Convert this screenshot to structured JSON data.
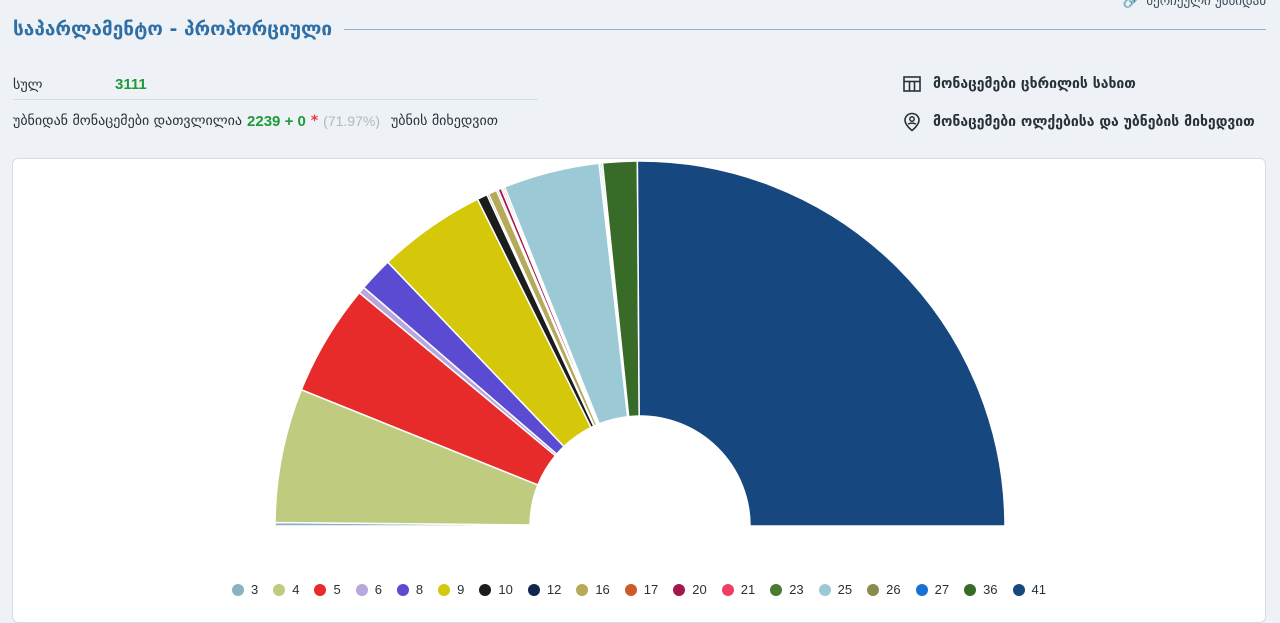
{
  "top_link": {
    "label": "შერჩეული უბნიდან",
    "icon": "link-icon"
  },
  "header": {
    "title": "საპარლამენტო - პროპორციული"
  },
  "stats": {
    "total_label": "სულ",
    "total_value": "3111",
    "counted_label": "უბნიდან მონაცემები დათვლილია",
    "counted_value": "2239 + 0",
    "star": "*",
    "percent": "(71.97%)",
    "by_precinct": "უბნის მიხედვით"
  },
  "links": {
    "table_view": {
      "label": "მონაცემები ცხრილის სახით",
      "icon": "table-icon"
    },
    "map_view": {
      "label": "მონაცემები ოლქებისა და უბნების მიხედვით",
      "icon": "location-pin-icon"
    }
  },
  "chart_data": {
    "type": "pie",
    "variant": "half-donut",
    "series": [
      {
        "name": "3",
        "color": "#8ab3c2",
        "value": 0.2
      },
      {
        "name": "4",
        "color": "#bfcb7f",
        "value": 7.8
      },
      {
        "name": "5",
        "color": "#e72a2a",
        "value": 6.5
      },
      {
        "name": "6",
        "color": "#b9a6dc",
        "value": 0.4
      },
      {
        "name": "8",
        "color": "#5b4bd2",
        "value": 2.0
      },
      {
        "name": "9",
        "color": "#d5c80a",
        "value": 6.3
      },
      {
        "name": "10",
        "color": "#1c1c1c",
        "value": 0.6
      },
      {
        "name": "12",
        "color": "#10264d",
        "value": 0.1
      },
      {
        "name": "16",
        "color": "#b5a95a",
        "value": 0.5
      },
      {
        "name": "17",
        "color": "#cd5a28",
        "value": 0.1
      },
      {
        "name": "20",
        "color": "#a4174d",
        "value": 0.2
      },
      {
        "name": "21",
        "color": "#ee3e62",
        "value": 0.1
      },
      {
        "name": "23",
        "color": "#4a7a32",
        "value": 0.1
      },
      {
        "name": "25",
        "color": "#9bcad6",
        "value": 5.6
      },
      {
        "name": "26",
        "color": "#8d8a4e",
        "value": 0.1
      },
      {
        "name": "27",
        "color": "#1a6fd6",
        "value": 0.1
      },
      {
        "name": "36",
        "color": "#386a28",
        "value": 2.0
      },
      {
        "name": "41",
        "color": "#16477e",
        "value": 33.0
      }
    ],
    "legend_position": "bottom"
  }
}
